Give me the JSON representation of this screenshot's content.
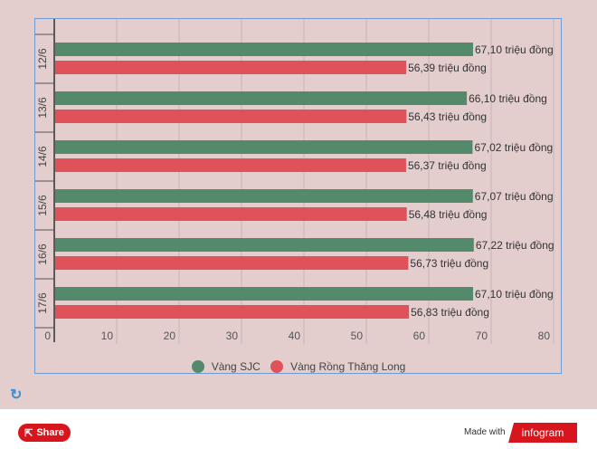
{
  "chart_data": {
    "type": "bar",
    "orientation": "horizontal",
    "categories": [
      "12/6",
      "13/6",
      "14/6",
      "15/6",
      "16/6",
      "17/6"
    ],
    "series": [
      {
        "name": "Vàng SJC",
        "color": "#548a6c",
        "values": [
          67.1,
          66.1,
          67.02,
          67.07,
          67.22,
          67.1
        ],
        "labels": [
          "67,10 triệu đồng",
          "66,10 triệu đồng",
          "67,02 triệu đồng",
          "67,07 triệu đồng",
          "67,22 triệu đồng",
          "67,10 triệu đồng"
        ]
      },
      {
        "name": "Vàng Rồng Thăng Long",
        "color": "#e0525a",
        "values": [
          56.39,
          56.43,
          56.37,
          56.48,
          56.73,
          56.83
        ],
        "labels": [
          "56,39 triệu đồng",
          "56,43 triệu đồng",
          "56,37 triệu đồng",
          "56,48 triệu đồng",
          "56,73 triệu đồng",
          "56,83 triệu đồng"
        ]
      }
    ],
    "xlim": [
      0,
      80
    ],
    "xticks": [
      "0",
      "10",
      "20",
      "30",
      "40",
      "50",
      "60",
      "70",
      "80"
    ],
    "grid": true,
    "legend_position": "bottom"
  },
  "footer": {
    "share_label": "Share",
    "made_with": "Made with",
    "brand": "infogram"
  },
  "icons": {
    "refresh": "refresh-icon",
    "share": "share-icon"
  }
}
